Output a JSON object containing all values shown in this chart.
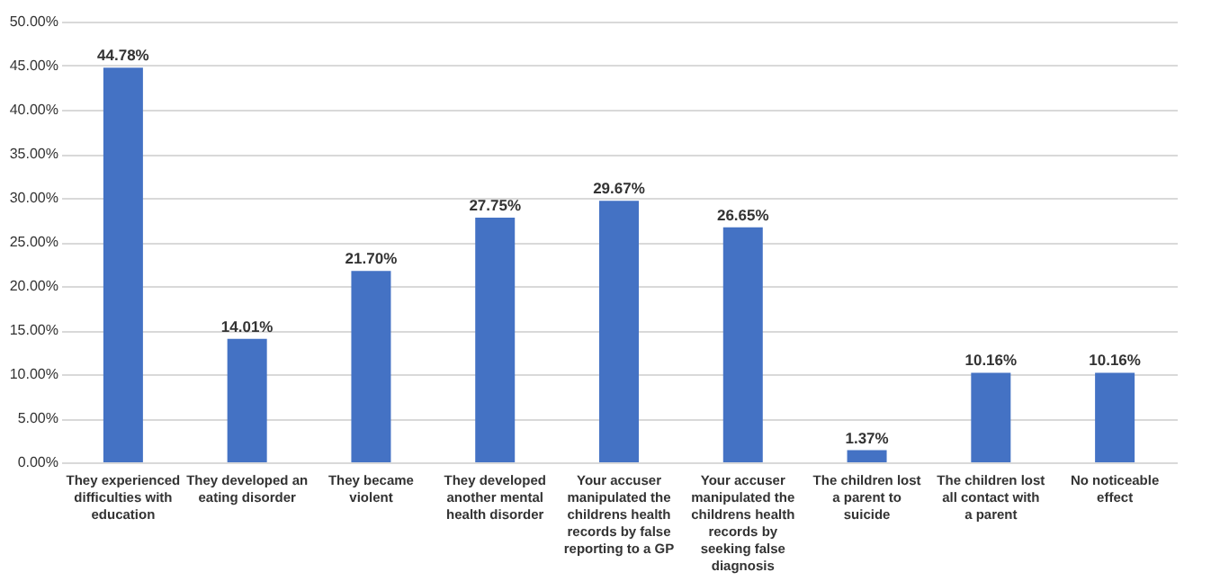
{
  "chart_data": {
    "type": "bar",
    "categories": [
      "They experienced difficulties with education",
      "They developed an eating disorder",
      "They became violent",
      "They developed another mental health disorder",
      "Your accuser manipulated the childrens health records by false reporting to a GP",
      "Your accuser manipulated the childrens health records by seeking false diagnosis",
      "The children lost a parent to suicide",
      "The children lost all contact with a parent",
      "No noticeable effect"
    ],
    "values": [
      44.78,
      14.01,
      21.7,
      27.75,
      29.67,
      26.65,
      1.37,
      10.16,
      10.16
    ],
    "value_labels": [
      "44.78%",
      "14.01%",
      "21.70%",
      "27.75%",
      "29.67%",
      "26.65%",
      "1.37%",
      "10.16%",
      "10.16%"
    ],
    "color": "#4472c4",
    "ylim": [
      0,
      50
    ],
    "yticks": [
      {
        "value": 0,
        "label": "0.00%"
      },
      {
        "value": 5,
        "label": "5.00%"
      },
      {
        "value": 10,
        "label": "10.00%"
      },
      {
        "value": 15,
        "label": "15.00%"
      },
      {
        "value": 20,
        "label": "20.00%"
      },
      {
        "value": 25,
        "label": "25.00%"
      },
      {
        "value": 30,
        "label": "30.00%"
      },
      {
        "value": 35,
        "label": "35.00%"
      },
      {
        "value": 40,
        "label": "40.00%"
      },
      {
        "value": 45,
        "label": "45.00%"
      },
      {
        "value": 50,
        "label": "50.00%"
      }
    ],
    "grid": "y"
  }
}
